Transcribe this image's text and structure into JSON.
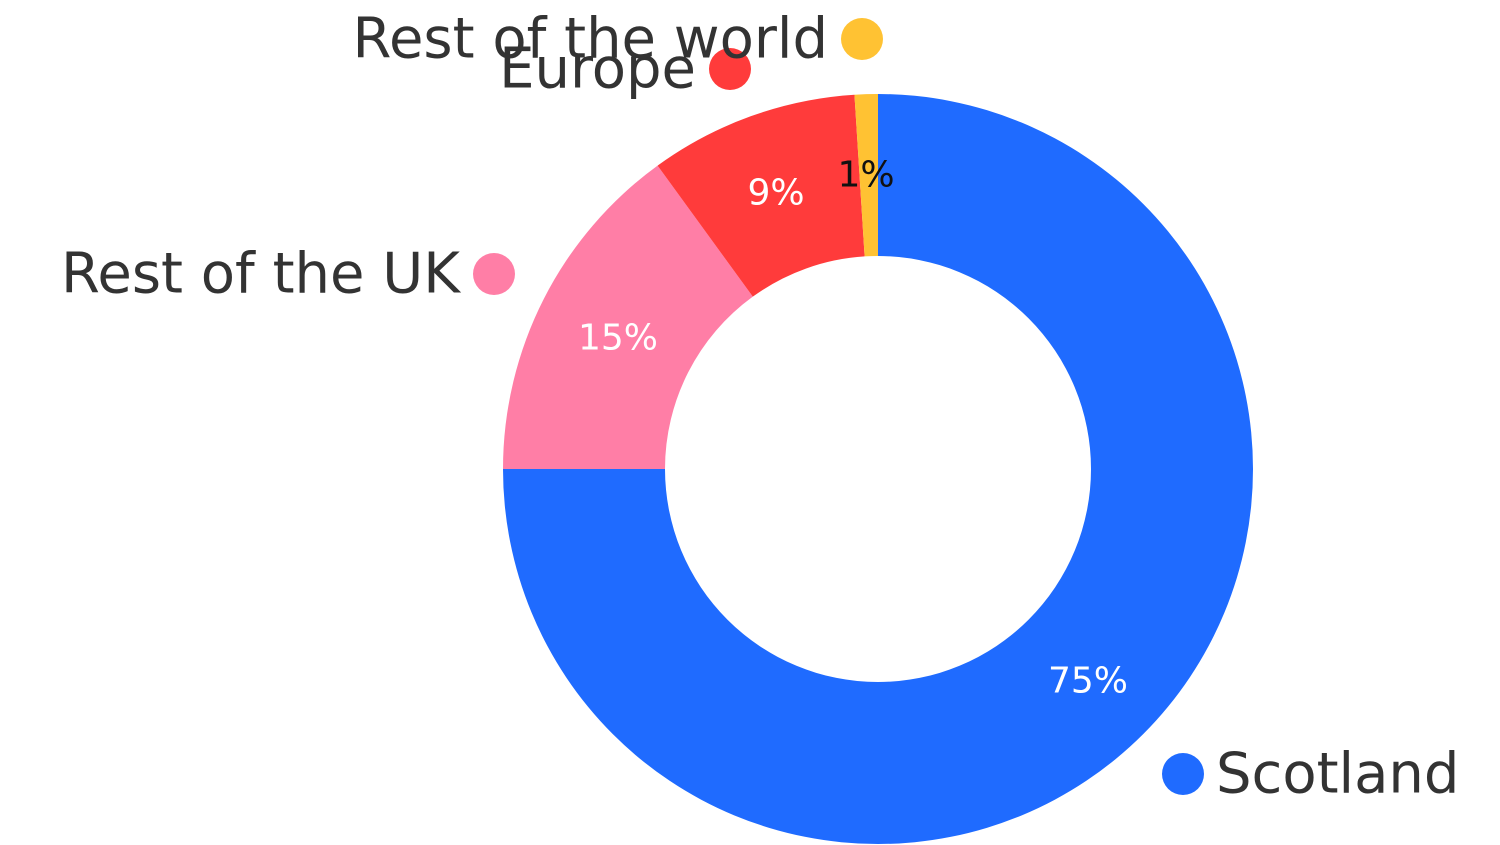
{
  "chart_data": {
    "type": "pie",
    "categories": [
      "Scotland",
      "Rest of the UK",
      "Europe",
      "Rest of the world"
    ],
    "values": [
      75,
      15,
      9,
      1
    ],
    "value_labels": [
      "75%",
      "15%",
      "9%",
      "1%"
    ],
    "colors": [
      "#1f6bff",
      "#ff7ea6",
      "#ff3b3b",
      "#ffc233"
    ],
    "label_colors": [
      "#ffffff",
      "#ffffff",
      "#ffffff",
      "#111111"
    ],
    "donut": true,
    "title": "",
    "legend": "labels placed next to their slices, each with a colored dot"
  }
}
